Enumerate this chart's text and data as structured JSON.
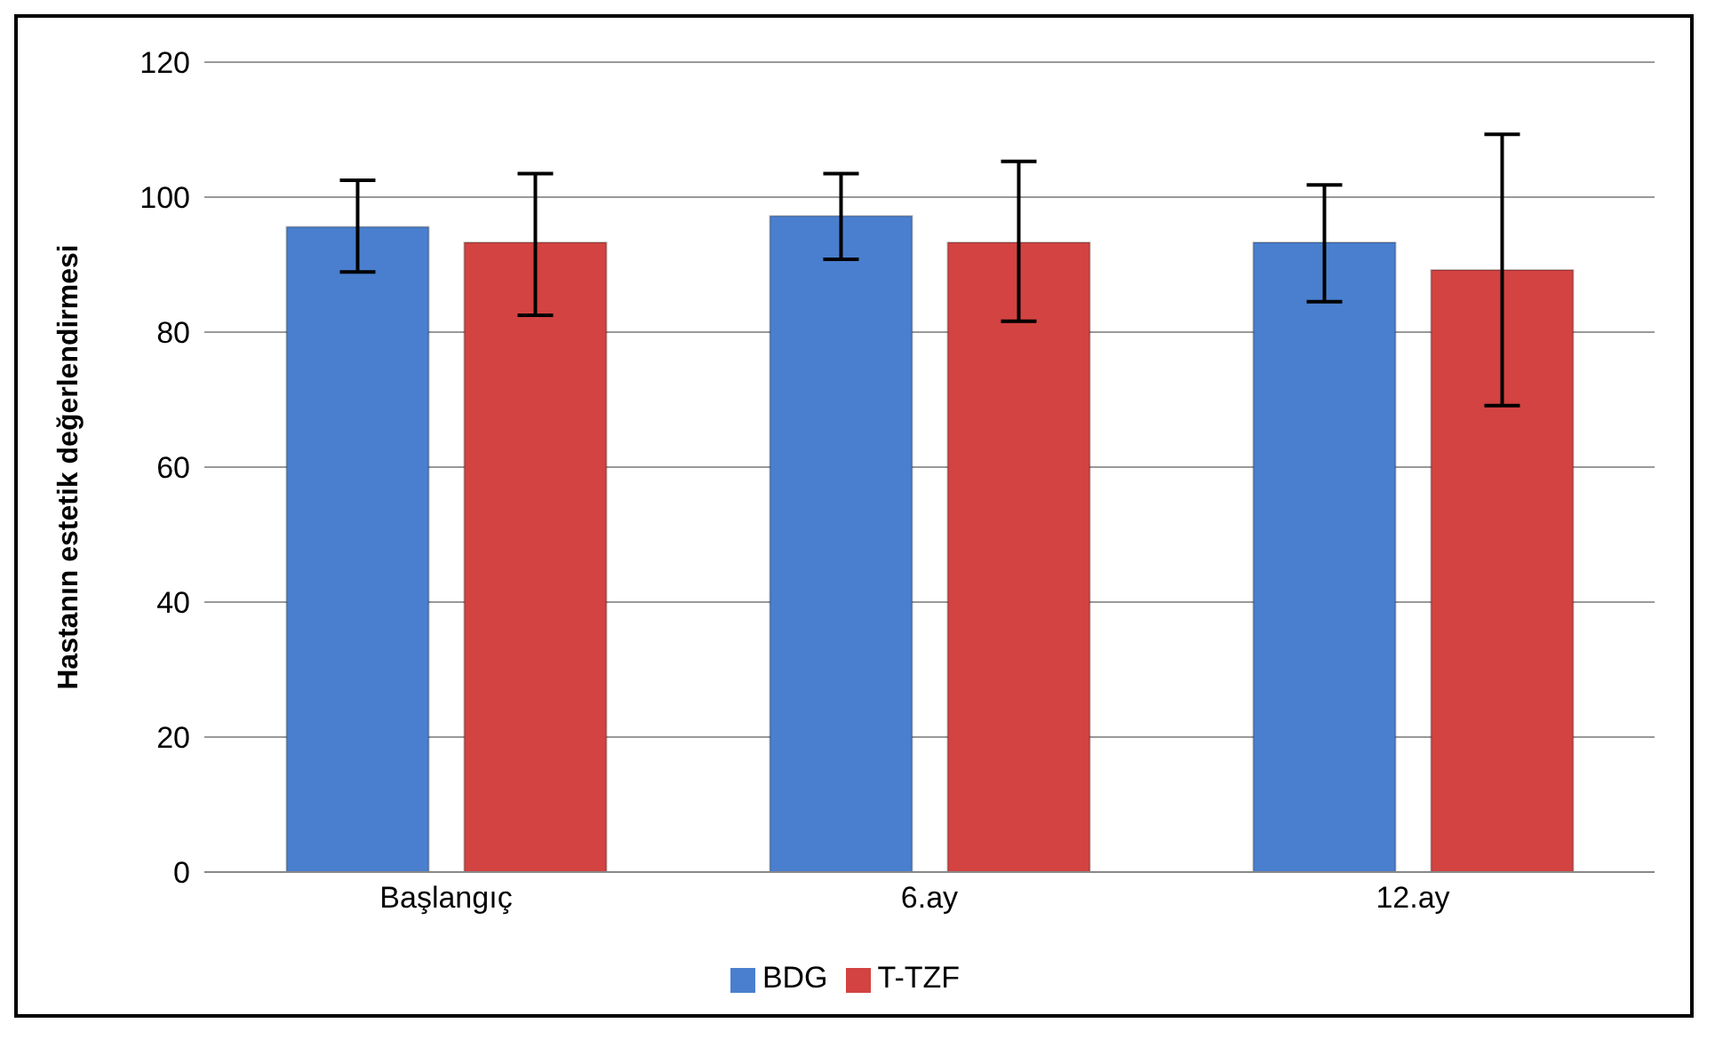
{
  "chart_data": {
    "type": "bar",
    "ylabel": "Hastanın estetik değerlendirmesi",
    "categories": [
      "Başlangıç",
      "6.ay",
      "12.ay"
    ],
    "series": [
      {
        "name": "BDG",
        "color": "#4a7fcf",
        "values": [
          95.6,
          97.2,
          93.3
        ],
        "errors": [
          [
            88.9,
            102.5
          ],
          [
            90.8,
            103.5
          ],
          [
            84.5,
            101.8
          ]
        ]
      },
      {
        "name": "T-TZF",
        "color": "#d24341",
        "values": [
          93.3,
          93.3,
          89.2
        ],
        "errors": [
          [
            82.5,
            103.5
          ],
          [
            81.6,
            105.3
          ],
          [
            69.1,
            109.3
          ]
        ]
      }
    ],
    "ylim": [
      0,
      120
    ],
    "yticks": [
      0,
      20,
      40,
      60,
      80,
      100,
      120
    ],
    "grid": "y",
    "legend": "bottom"
  }
}
